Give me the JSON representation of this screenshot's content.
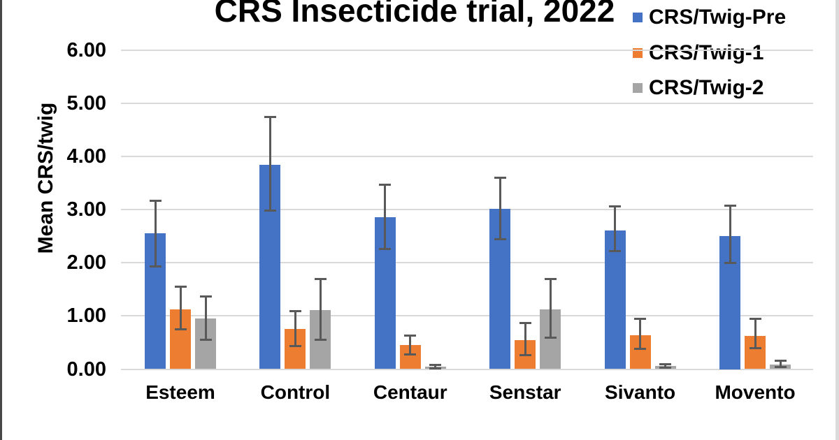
{
  "title": "CRS Insecticide trial, 2022",
  "colors": {
    "series_pre": "#4472C4",
    "series_1": "#ED7D31",
    "series_2": "#A5A5A5",
    "error_bar": "#595959",
    "gridline": "#D9D9D9",
    "text": "#000000",
    "left_border": "#474747",
    "right_border": "#DBDBDB"
  },
  "chart_data": {
    "type": "bar",
    "title": "CRS Insecticide trial, 2022",
    "xlabel": "",
    "ylabel": "Mean CRS/twig",
    "ylim": [
      0,
      6
    ],
    "ytick_labels": [
      "0.00",
      "1.00",
      "2.00",
      "3.00",
      "4.00",
      "5.00",
      "6.00"
    ],
    "grid": true,
    "legend_position": "top-right",
    "error_bars": true,
    "categories": [
      "Esteem",
      "Control",
      "Centaur",
      "Senstar",
      "Sivanto",
      "Movento"
    ],
    "series": [
      {
        "name": "CRS/Twig-Pre",
        "color": "#4472C4",
        "values": [
          2.55,
          3.85,
          2.86,
          3.01,
          2.61,
          2.5
        ],
        "error_low": [
          1.93,
          2.97,
          2.25,
          2.44,
          2.21,
          1.99
        ],
        "error_high": [
          3.17,
          4.75,
          3.48,
          3.61,
          3.07,
          3.08
        ]
      },
      {
        "name": "CRS/Twig-1",
        "color": "#ED7D31",
        "values": [
          1.13,
          0.75,
          0.45,
          0.55,
          0.64,
          0.63
        ],
        "error_low": [
          0.74,
          0.43,
          0.27,
          0.25,
          0.38,
          0.39
        ],
        "error_high": [
          1.56,
          1.1,
          0.64,
          0.88,
          0.95,
          0.95
        ]
      },
      {
        "name": "CRS/Twig-2",
        "color": "#A5A5A5",
        "values": [
          0.95,
          1.11,
          0.05,
          1.12,
          0.06,
          0.09
        ],
        "error_low": [
          0.55,
          0.54,
          0.01,
          0.58,
          0.02,
          0.03
        ],
        "error_high": [
          1.37,
          1.7,
          0.09,
          1.7,
          0.1,
          0.16
        ]
      }
    ]
  }
}
